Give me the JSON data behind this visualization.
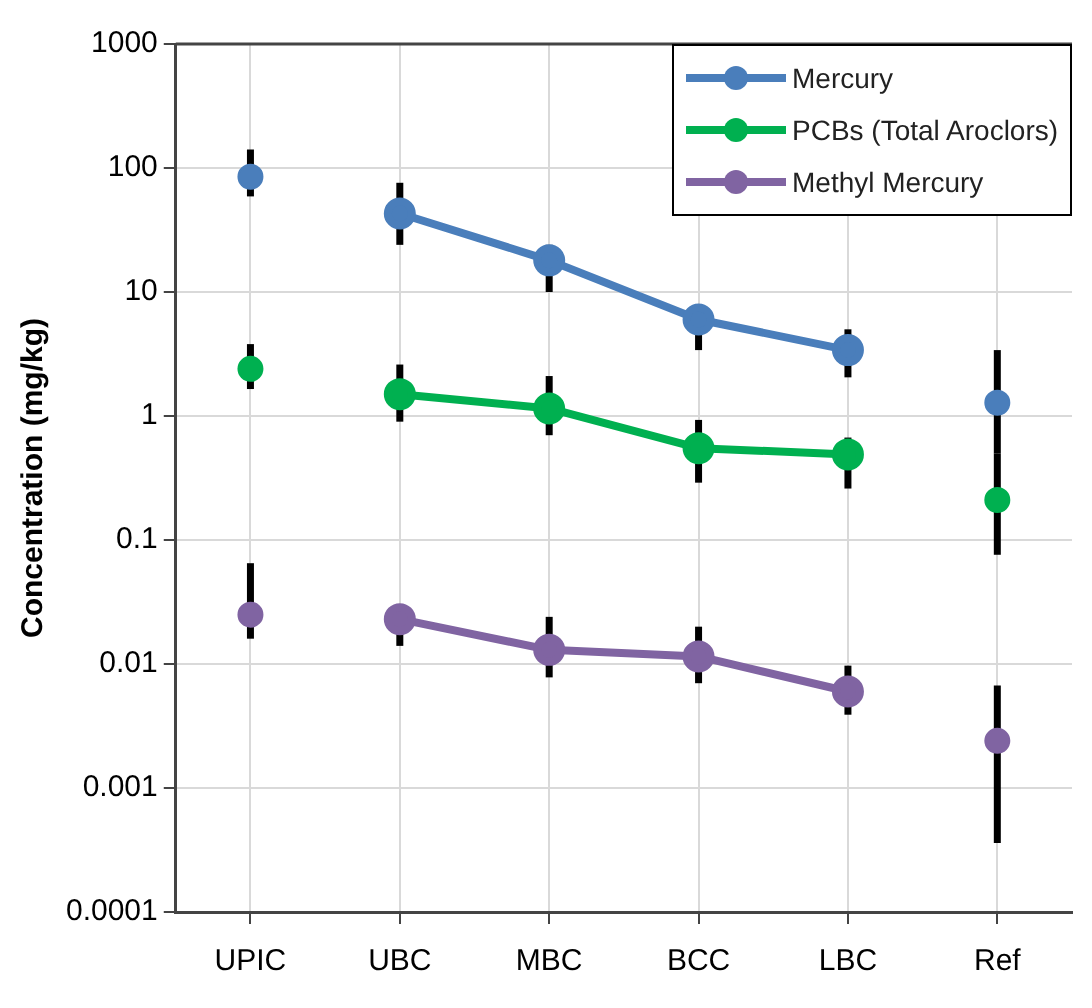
{
  "chart_data": {
    "type": "line",
    "ylabel": "Concentration (mg/kg)",
    "categories": [
      "UPIC",
      "UBC",
      "MBC",
      "BCC",
      "LBC",
      "Ref"
    ],
    "log": true,
    "ylim": [
      0.0001,
      1000
    ],
    "yticks": [
      0.0001,
      0.001,
      0.01,
      0.1,
      1,
      10,
      100,
      1000
    ],
    "grid": true,
    "legend": "top right",
    "marker": "circle",
    "series": [
      {
        "name": "Mercury",
        "color": "#4a7ebb",
        "values": [
          null,
          43,
          18,
          6,
          3.4,
          null
        ],
        "errors": [
          null,
          [
            24,
            76
          ],
          [
            10,
            24
          ],
          [
            3.4,
            6
          ],
          [
            2.05,
            5
          ],
          null
        ]
      },
      {
        "name": "PCBs (Total Aroclors)",
        "color": "#00b050",
        "values": [
          null,
          1.5,
          1.15,
          0.55,
          0.49,
          null
        ],
        "errors": [
          null,
          [
            0.9,
            2.6
          ],
          [
            0.7,
            2.1
          ],
          [
            0.29,
            0.93
          ],
          [
            0.26,
            0.67
          ],
          null
        ]
      },
      {
        "name": "Methyl Mercury",
        "color": "#8064a2",
        "values": [
          null,
          0.023,
          0.013,
          0.0115,
          0.006,
          null
        ],
        "errors": [
          null,
          [
            0.014,
            0.03
          ],
          [
            0.0078,
            0.024
          ],
          [
            0.007,
            0.02
          ],
          [
            0.0039,
            0.0097
          ],
          null
        ]
      },
      {
        "type": "scatter",
        "color": "#4a7ebb",
        "x": [
          "UPIC",
          "Ref"
        ],
        "values": [
          85,
          1.28
        ],
        "errors": [
          [
            59,
            141
          ],
          [
            0.5,
            3.4
          ]
        ]
      },
      {
        "type": "scatter",
        "color": "#00b050",
        "x": [
          "UPIC",
          "Ref"
        ],
        "values": [
          2.4,
          0.21
        ],
        "errors": [
          [
            1.65,
            3.8
          ],
          [
            0.076,
            0.5
          ]
        ]
      },
      {
        "type": "scatter",
        "color": "#8064a2",
        "x": [
          "UPIC",
          "Ref"
        ],
        "values": [
          0.025,
          0.0024
        ],
        "errors": [
          [
            0.016,
            0.065
          ],
          [
            0.00036,
            0.0067
          ]
        ]
      }
    ]
  }
}
